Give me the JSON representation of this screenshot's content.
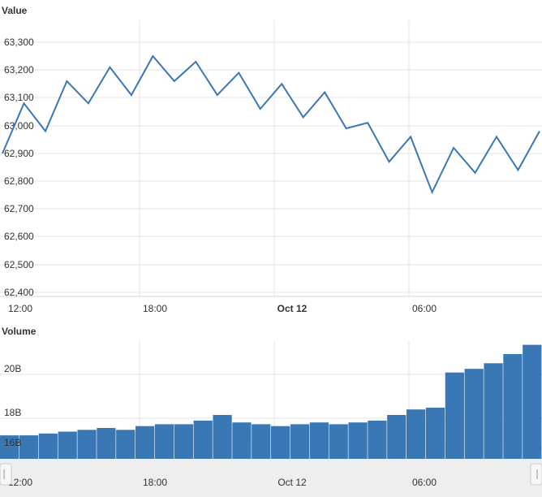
{
  "colors": {
    "line": "#3a77b5",
    "bar": "#3a77b5",
    "grid": "#e6e6e6",
    "navigator_bg": "#eeeeee"
  },
  "chart_data": [
    {
      "type": "line",
      "title": "Value",
      "ylim": [
        62400,
        63350
      ],
      "yticks": [
        "63,300",
        "63,200",
        "63,100",
        "63,000",
        "62,900",
        "62,800",
        "62,700",
        "62,600",
        "62,500",
        "62,400"
      ],
      "xticks": [
        "12:00",
        "18:00",
        "Oct 12",
        "06:00"
      ],
      "grid": true,
      "series": [
        {
          "x": [
            0,
            1,
            2,
            3,
            4,
            5,
            6,
            7,
            8,
            9,
            10,
            11,
            12,
            13,
            14,
            15,
            16,
            17,
            18,
            19,
            20,
            21,
            22,
            23,
            24,
            25
          ],
          "values": [
            62900,
            63080,
            62980,
            63160,
            63080,
            63210,
            63110,
            63250,
            63160,
            63230,
            63110,
            63190,
            63060,
            63150,
            63030,
            63120,
            62990,
            63010,
            62870,
            62960,
            62760,
            62920,
            62830,
            62960,
            62840,
            62980
          ]
        }
      ]
    },
    {
      "type": "bar",
      "title": "Volume",
      "yticks": [
        "20B",
        "18B",
        "16B"
      ],
      "xticks": [
        "12:00",
        "18:00",
        "Oct 12",
        "06:00"
      ],
      "grid": true,
      "series": [
        {
          "values": [
            16.7,
            16.7,
            16.8,
            16.9,
            17.0,
            17.1,
            17.0,
            17.2,
            17.3,
            17.3,
            17.5,
            17.8,
            17.4,
            17.3,
            17.2,
            17.3,
            17.4,
            17.3,
            17.4,
            17.5,
            17.8,
            18.1,
            18.2,
            20.1,
            20.3,
            20.6,
            21.1,
            21.6
          ]
        }
      ]
    }
  ],
  "navigator": {
    "xticks": [
      "12:00",
      "18:00",
      "Oct 12",
      "06:00"
    ]
  }
}
